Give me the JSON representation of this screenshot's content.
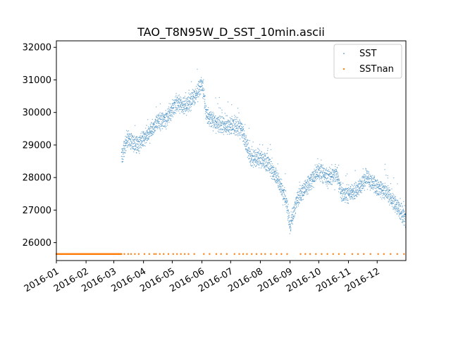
{
  "chart_data": {
    "type": "scatter",
    "title": "TAO_T8N95W_D_SST_10min.ascii",
    "xlabel": "",
    "ylabel": "",
    "x_ticks": [
      "2016-01",
      "2016-02",
      "2016-03",
      "2016-04",
      "2016-05",
      "2016-06",
      "2016-07",
      "2016-08",
      "2016-09",
      "2016-10",
      "2016-11",
      "2016-12"
    ],
    "y_ticks": [
      26000,
      27000,
      28000,
      29000,
      30000,
      31000,
      32000
    ],
    "xlim": [
      "2016-01-01",
      "2016-12-31"
    ],
    "ylim": [
      25450,
      32200
    ],
    "legend_position": "top-right",
    "series": [
      {
        "name": "SST",
        "color": "#1f77b4",
        "marker": "small-dot",
        "start": "2016-03-09",
        "end": "2016-12-31",
        "trend": [
          {
            "date": "2016-03-09",
            "value": 28600
          },
          {
            "date": "2016-03-15",
            "value": 29200
          },
          {
            "date": "2016-03-25",
            "value": 29000
          },
          {
            "date": "2016-04-05",
            "value": 29300
          },
          {
            "date": "2016-04-15",
            "value": 29700
          },
          {
            "date": "2016-04-25",
            "value": 29800
          },
          {
            "date": "2016-05-05",
            "value": 30300
          },
          {
            "date": "2016-05-15",
            "value": 30200
          },
          {
            "date": "2016-05-25",
            "value": 30500
          },
          {
            "date": "2016-06-01",
            "value": 30900
          },
          {
            "date": "2016-06-06",
            "value": 29900
          },
          {
            "date": "2016-06-15",
            "value": 29700
          },
          {
            "date": "2016-06-25",
            "value": 29600
          },
          {
            "date": "2016-07-05",
            "value": 29600
          },
          {
            "date": "2016-07-12",
            "value": 29500
          },
          {
            "date": "2016-07-22",
            "value": 28600
          },
          {
            "date": "2016-08-01",
            "value": 28600
          },
          {
            "date": "2016-08-10",
            "value": 28400
          },
          {
            "date": "2016-08-20",
            "value": 27900
          },
          {
            "date": "2016-08-28",
            "value": 27300
          },
          {
            "date": "2016-09-01",
            "value": 26500
          },
          {
            "date": "2016-09-08",
            "value": 27300
          },
          {
            "date": "2016-09-20",
            "value": 27800
          },
          {
            "date": "2016-10-01",
            "value": 28200
          },
          {
            "date": "2016-10-10",
            "value": 28000
          },
          {
            "date": "2016-10-20",
            "value": 28100
          },
          {
            "date": "2016-10-25",
            "value": 27500
          },
          {
            "date": "2016-11-01",
            "value": 27500
          },
          {
            "date": "2016-11-10",
            "value": 27600
          },
          {
            "date": "2016-11-20",
            "value": 28000
          },
          {
            "date": "2016-12-01",
            "value": 27700
          },
          {
            "date": "2016-12-10",
            "value": 27600
          },
          {
            "date": "2016-12-20",
            "value": 27200
          },
          {
            "date": "2016-12-31",
            "value": 26700
          }
        ]
      },
      {
        "name": "SSTnan",
        "color": "#ff7f0e",
        "marker": "small-dot",
        "constant_value": 25650,
        "solid_range": [
          "2016-01-01",
          "2016-03-09"
        ],
        "sparse_dates": [
          "2016-03-12",
          "2016-03-16",
          "2016-03-19",
          "2016-03-23",
          "2016-03-27",
          "2016-04-02",
          "2016-04-07",
          "2016-04-12",
          "2016-04-14",
          "2016-04-18",
          "2016-04-22",
          "2016-04-27",
          "2016-05-02",
          "2016-05-06",
          "2016-05-10",
          "2016-05-14",
          "2016-05-18",
          "2016-05-24",
          "2016-06-03",
          "2016-06-09",
          "2016-06-16",
          "2016-06-21",
          "2016-06-27",
          "2016-07-05",
          "2016-07-10",
          "2016-07-14",
          "2016-07-18",
          "2016-07-23",
          "2016-07-28",
          "2016-08-02",
          "2016-08-06",
          "2016-08-12",
          "2016-08-18",
          "2016-08-23",
          "2016-08-29",
          "2016-09-12",
          "2016-09-17",
          "2016-09-22",
          "2016-09-28",
          "2016-10-04",
          "2016-10-10",
          "2016-10-16",
          "2016-10-22",
          "2016-10-28",
          "2016-11-05",
          "2016-11-11",
          "2016-11-17",
          "2016-11-24",
          "2016-12-02",
          "2016-12-08",
          "2016-12-15",
          "2016-12-22",
          "2016-12-29"
        ]
      }
    ]
  }
}
